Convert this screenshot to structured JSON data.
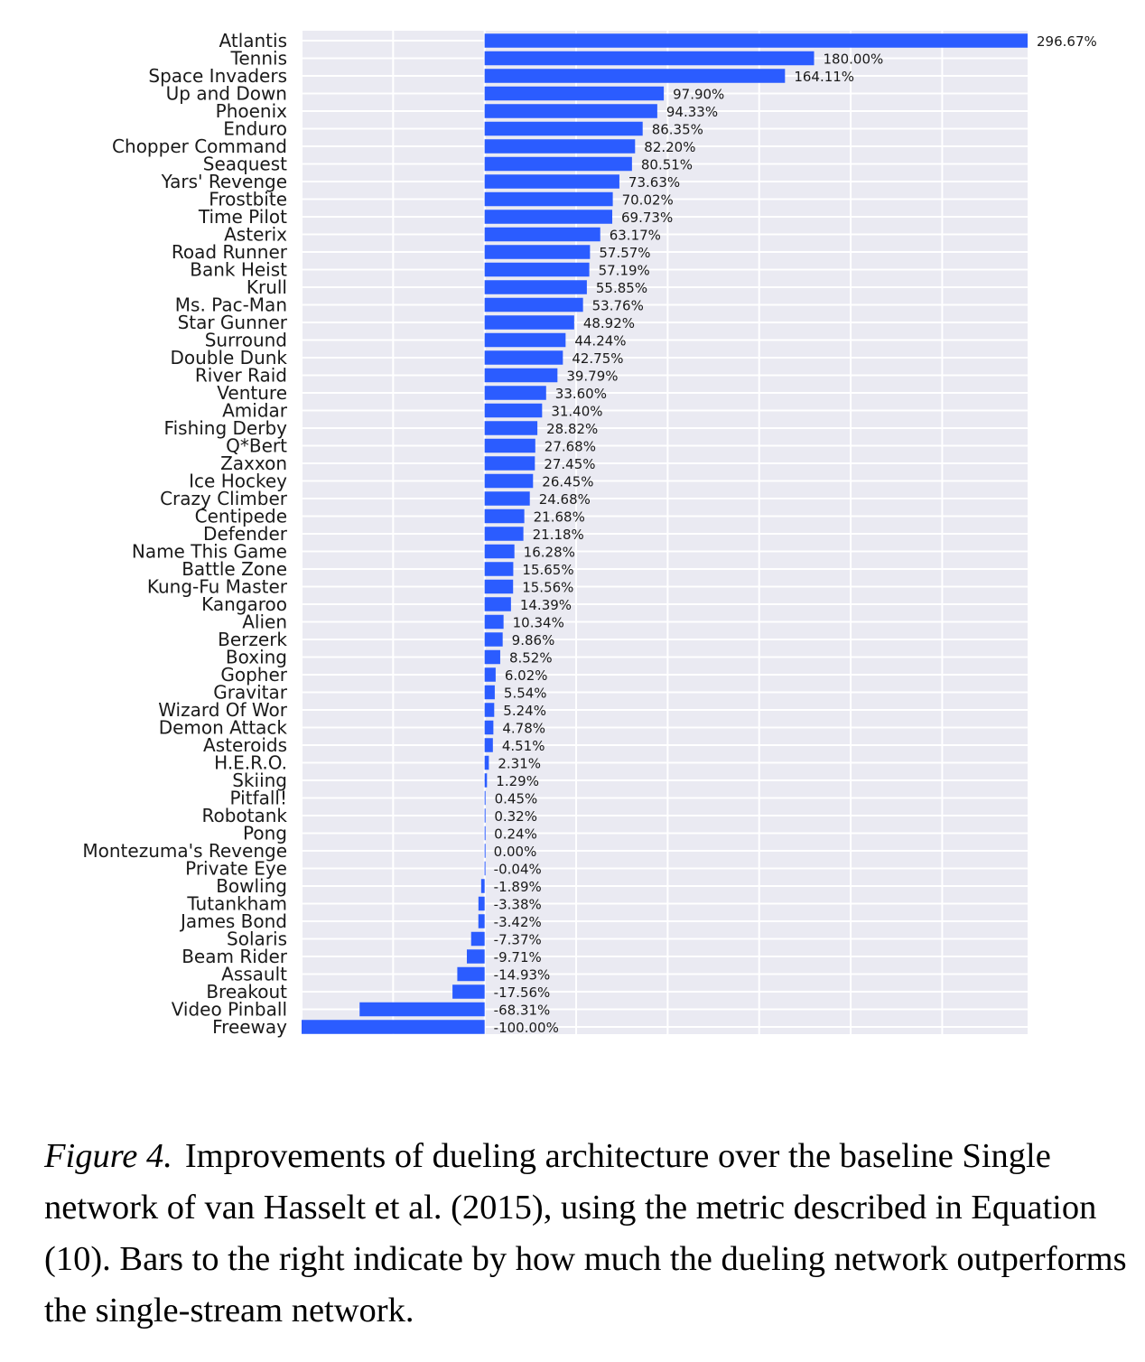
{
  "chart_data": {
    "type": "bar",
    "orientation": "horizontal",
    "xlim": [
      -100,
      296.67
    ],
    "grid": true,
    "bar_color": "#2b5cff",
    "background_color": "#eaeaf2",
    "value_label_suffix": "%",
    "categories": [
      "Atlantis",
      "Tennis",
      "Space Invaders",
      "Up and Down",
      "Phoenix",
      "Enduro",
      "Chopper Command",
      "Seaquest",
      "Yars' Revenge",
      "Frostbite",
      "Time Pilot",
      "Asterix",
      "Road Runner",
      "Bank Heist",
      "Krull",
      "Ms. Pac-Man",
      "Star Gunner",
      "Surround",
      "Double Dunk",
      "River Raid",
      "Venture",
      "Amidar",
      "Fishing Derby",
      "Q*Bert",
      "Zaxxon",
      "Ice Hockey",
      "Crazy Climber",
      "Centipede",
      "Defender",
      "Name This Game",
      "Battle Zone",
      "Kung-Fu Master",
      "Kangaroo",
      "Alien",
      "Berzerk",
      "Boxing",
      "Gopher",
      "Gravitar",
      "Wizard Of Wor",
      "Demon Attack",
      "Asteroids",
      "H.E.R.O.",
      "Skiing",
      "Pitfall!",
      "Robotank",
      "Pong",
      "Montezuma's Revenge",
      "Private Eye",
      "Bowling",
      "Tutankham",
      "James Bond",
      "Solaris",
      "Beam Rider",
      "Assault",
      "Breakout",
      "Video Pinball",
      "Freeway"
    ],
    "values": [
      296.67,
      180.0,
      164.11,
      97.9,
      94.33,
      86.35,
      82.2,
      80.51,
      73.63,
      70.02,
      69.73,
      63.17,
      57.57,
      57.19,
      55.85,
      53.76,
      48.92,
      44.24,
      42.75,
      39.79,
      33.6,
      31.4,
      28.82,
      27.68,
      27.45,
      26.45,
      24.68,
      21.68,
      21.18,
      16.28,
      15.65,
      15.56,
      14.39,
      10.34,
      9.86,
      8.52,
      6.02,
      5.54,
      5.24,
      4.78,
      4.51,
      2.31,
      1.29,
      0.45,
      0.32,
      0.24,
      0.0,
      -0.04,
      -1.89,
      -3.38,
      -3.42,
      -7.37,
      -9.71,
      -14.93,
      -17.56,
      -68.31,
      -100.0
    ],
    "value_labels": [
      "296.67%",
      "180.00%",
      "164.11%",
      "97.90%",
      "94.33%",
      "86.35%",
      "82.20%",
      "80.51%",
      "73.63%",
      "70.02%",
      "69.73%",
      "63.17%",
      "57.57%",
      "57.19%",
      "55.85%",
      "53.76%",
      "48.92%",
      "44.24%",
      "42.75%",
      "39.79%",
      "33.60%",
      "31.40%",
      "28.82%",
      "27.68%",
      "27.45%",
      "26.45%",
      "24.68%",
      "21.68%",
      "21.18%",
      "16.28%",
      "15.65%",
      "15.56%",
      "14.39%",
      "10.34%",
      "9.86%",
      "8.52%",
      "6.02%",
      "5.54%",
      "5.24%",
      "4.78%",
      "4.51%",
      "2.31%",
      "1.29%",
      "0.45%",
      "0.32%",
      "0.24%",
      "0.00%",
      "-0.04%",
      "-1.89%",
      "-3.38%",
      "-3.42%",
      "-7.37%",
      "-9.71%",
      "-14.93%",
      "-17.56%",
      "-68.31%",
      "-100.00%"
    ]
  },
  "caption": {
    "label": "Figure 4.",
    "text": "Improvements of dueling architecture over the baseline Single network of van Hasselt et al. (2015), using the metric described in Equation (10). Bars to the right indicate by how much the dueling network outperforms the single-stream network."
  }
}
